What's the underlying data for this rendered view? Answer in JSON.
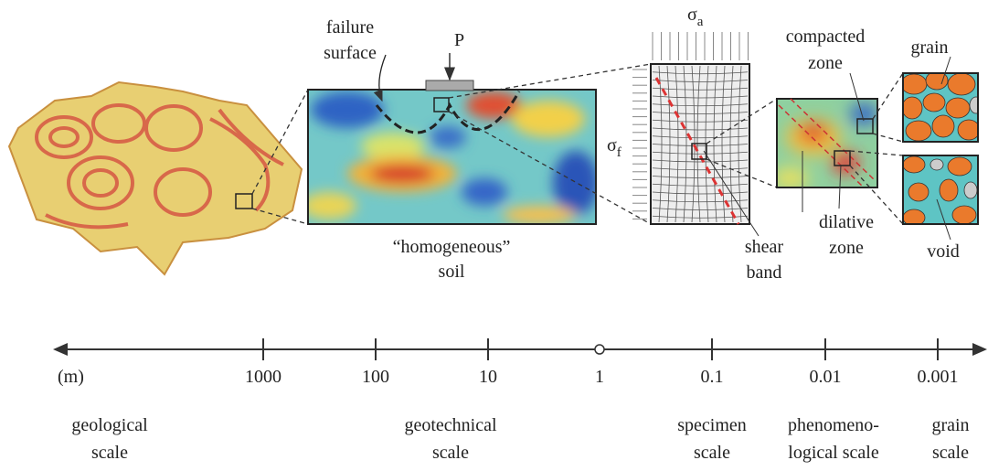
{
  "annotations": {
    "failure_surface": [
      "failure",
      "surface"
    ],
    "load": "P",
    "axial_stress": {
      "symbol": "σ",
      "subscript": "a"
    },
    "confining_stress": {
      "symbol": "σ",
      "subscript": "f"
    },
    "homogeneous_soil": [
      "“homogeneous”",
      "soil"
    ],
    "shear_band": [
      "shear",
      "band"
    ],
    "compacted_zone": [
      "compacted",
      "zone"
    ],
    "dilative_zone": [
      "dilative",
      "zone"
    ],
    "grain": "grain",
    "void": "void"
  },
  "scale_axis": {
    "unit": "(m)",
    "ticks": [
      "1000",
      "100",
      "10",
      "1",
      "0.1",
      "0.01",
      "0.001"
    ],
    "scales": [
      [
        "geological",
        "scale"
      ],
      [
        "geotechnical",
        "scale"
      ],
      [
        "specimen",
        "scale"
      ],
      [
        "phenomeno-",
        "logical scale"
      ],
      [
        "grain",
        "scale"
      ]
    ]
  }
}
